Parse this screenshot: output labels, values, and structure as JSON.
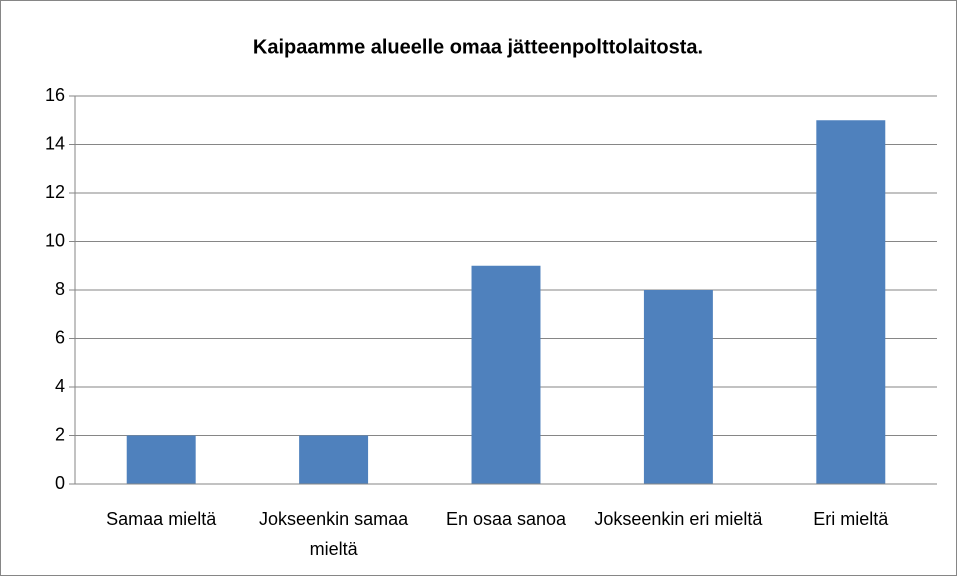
{
  "chart_data": {
    "type": "bar",
    "title": "Kaipaamme alueelle omaa jätteenpolttolaitosta.",
    "categories": [
      "Samaa mieltä",
      "Jokseenkin samaa mieltä",
      "En osaa sanoa",
      "Jokseenkin eri mieltä",
      "Eri mieltä"
    ],
    "values": [
      2,
      2,
      9,
      8,
      15
    ],
    "color": "#4f81bd",
    "ylim": [
      0,
      16
    ],
    "yticks": [
      0,
      2,
      4,
      6,
      8,
      10,
      12,
      14,
      16
    ],
    "grid": true
  }
}
